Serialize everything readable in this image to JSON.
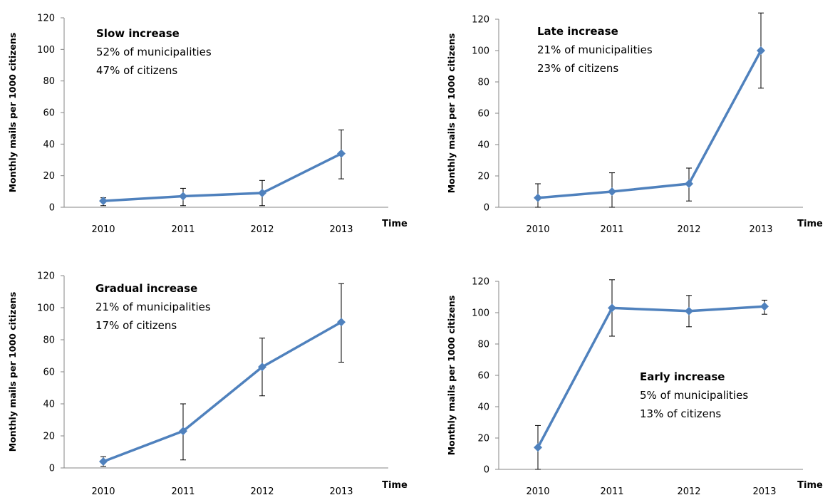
{
  "chart_data": [
    {
      "type": "line",
      "xlabel": "Time",
      "ylabel": "Monthly mails per 1000 citizens",
      "ylim": [
        0,
        120
      ],
      "yticks": [
        "0",
        "20",
        "40",
        "60",
        "80",
        "100",
        "120"
      ],
      "categories": [
        "2010",
        "2011",
        "2012",
        "2013"
      ],
      "values": [
        4,
        7,
        9,
        34
      ],
      "error_low": [
        1,
        1,
        1,
        18
      ],
      "error_high": [
        6,
        12,
        17,
        49
      ],
      "annotation": {
        "title": "Slow increase",
        "lines": [
          "52% of municipalities",
          "47% of citizens"
        ]
      },
      "grid": false,
      "color": "#4F81BD"
    },
    {
      "type": "line",
      "xlabel": "Time",
      "ylabel": "Monthly mails  per 1000 citizens",
      "ylim": [
        0,
        120
      ],
      "yticks": [
        "0",
        "20",
        "40",
        "60",
        "80",
        "100",
        "120"
      ],
      "categories": [
        "2010",
        "2011",
        "2012",
        "2013"
      ],
      "values": [
        6,
        10,
        15,
        100
      ],
      "error_low": [
        0,
        0,
        4,
        76
      ],
      "error_high": [
        15,
        22,
        25,
        124
      ],
      "annotation": {
        "title": "Late increase",
        "lines": [
          "21% of municipalities",
          "23% of citizens"
        ]
      },
      "grid": false,
      "color": "#4F81BD"
    },
    {
      "type": "line",
      "xlabel": "Time",
      "ylabel": "Monthly mails per 1000 citizens",
      "ylim": [
        0,
        120
      ],
      "yticks": [
        "0",
        "20",
        "40",
        "60",
        "80",
        "100",
        "120"
      ],
      "categories": [
        "2010",
        "2011",
        "2012",
        "2013"
      ],
      "values": [
        4,
        23,
        63,
        91
      ],
      "error_low": [
        1,
        5,
        45,
        66
      ],
      "error_high": [
        7,
        40,
        81,
        115
      ],
      "annotation": {
        "title": "Gradual increase",
        "lines": [
          "21% of municipalities",
          "17% of citizens"
        ]
      },
      "grid": false,
      "color": "#4F81BD"
    },
    {
      "type": "line",
      "xlabel": "Time",
      "ylabel": "Monthly mails  per 1000 citizens",
      "ylim": [
        0,
        120
      ],
      "yticks": [
        "0",
        "20",
        "40",
        "60",
        "80",
        "100",
        "120"
      ],
      "categories": [
        "2010",
        "2011",
        "2012",
        "2013"
      ],
      "values": [
        14,
        103,
        101,
        104
      ],
      "error_low": [
        0,
        85,
        91,
        99
      ],
      "error_high": [
        28,
        121,
        111,
        108
      ],
      "annotation": {
        "title": "Early increase",
        "lines": [
          "5% of municipalities",
          "13% of citizens"
        ]
      },
      "grid": false,
      "color": "#4F81BD"
    }
  ]
}
